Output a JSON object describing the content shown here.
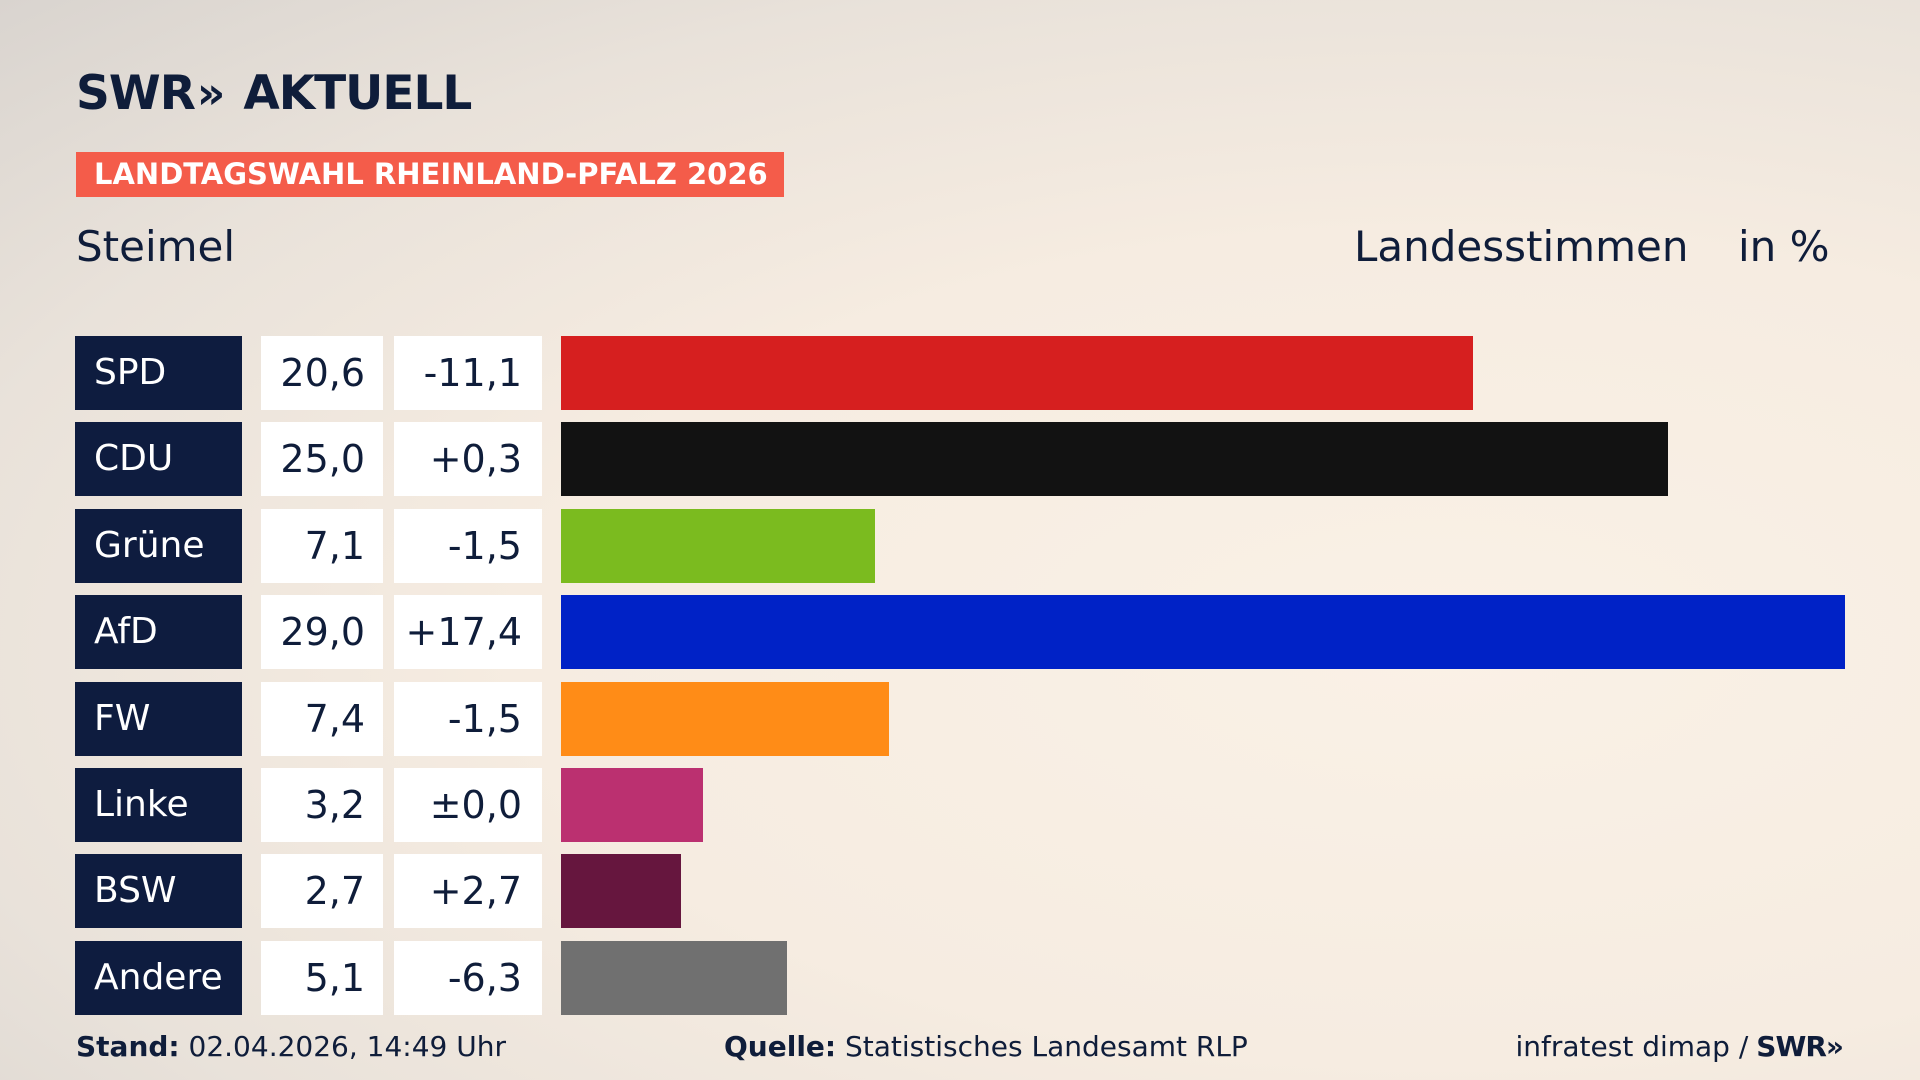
{
  "brand": {
    "name": "SWR",
    "chevrons": "»",
    "product": "AKTUELL"
  },
  "event": "LANDTAGSWAHL RHEINLAND-PFALZ 2026",
  "place": "Steimel",
  "metric": "Landesstimmen",
  "unit": "in %",
  "chart_data": {
    "type": "bar",
    "orientation": "horizontal",
    "categories": [
      "SPD",
      "CDU",
      "Grüne",
      "AfD",
      "FW",
      "Linke",
      "BSW",
      "Andere"
    ],
    "values": [
      20.6,
      25.0,
      7.1,
      29.0,
      7.4,
      3.2,
      2.7,
      5.1
    ],
    "value_labels": [
      "20,6",
      "25,0",
      "7,1",
      "29,0",
      "7,4",
      "3,2",
      "2,7",
      "5,1"
    ],
    "change_labels": [
      "-11,1",
      "+0,3",
      "-1,5",
      "+17,4",
      "-1,5",
      "±0,0",
      "+2,7",
      "-6,3"
    ],
    "changes": [
      -11.1,
      0.3,
      -1.5,
      17.4,
      -1.5,
      0.0,
      2.7,
      -6.3
    ],
    "colors": [
      "#d61f1f",
      "#121212",
      "#7bbb1f",
      "#0022c6",
      "#ff8c17",
      "#bb3070",
      "#66163e",
      "#707070"
    ],
    "xlim": [
      0,
      29.0
    ],
    "grid": false,
    "legend": "none"
  },
  "footer": {
    "stand_label": "Stand:",
    "stand_value": "02.04.2026, 14:49 Uhr",
    "source_label": "Quelle:",
    "source_value": "Statistisches Landesamt RLP",
    "credit": "infratest dimap /",
    "credit_logo": "SWR»"
  }
}
